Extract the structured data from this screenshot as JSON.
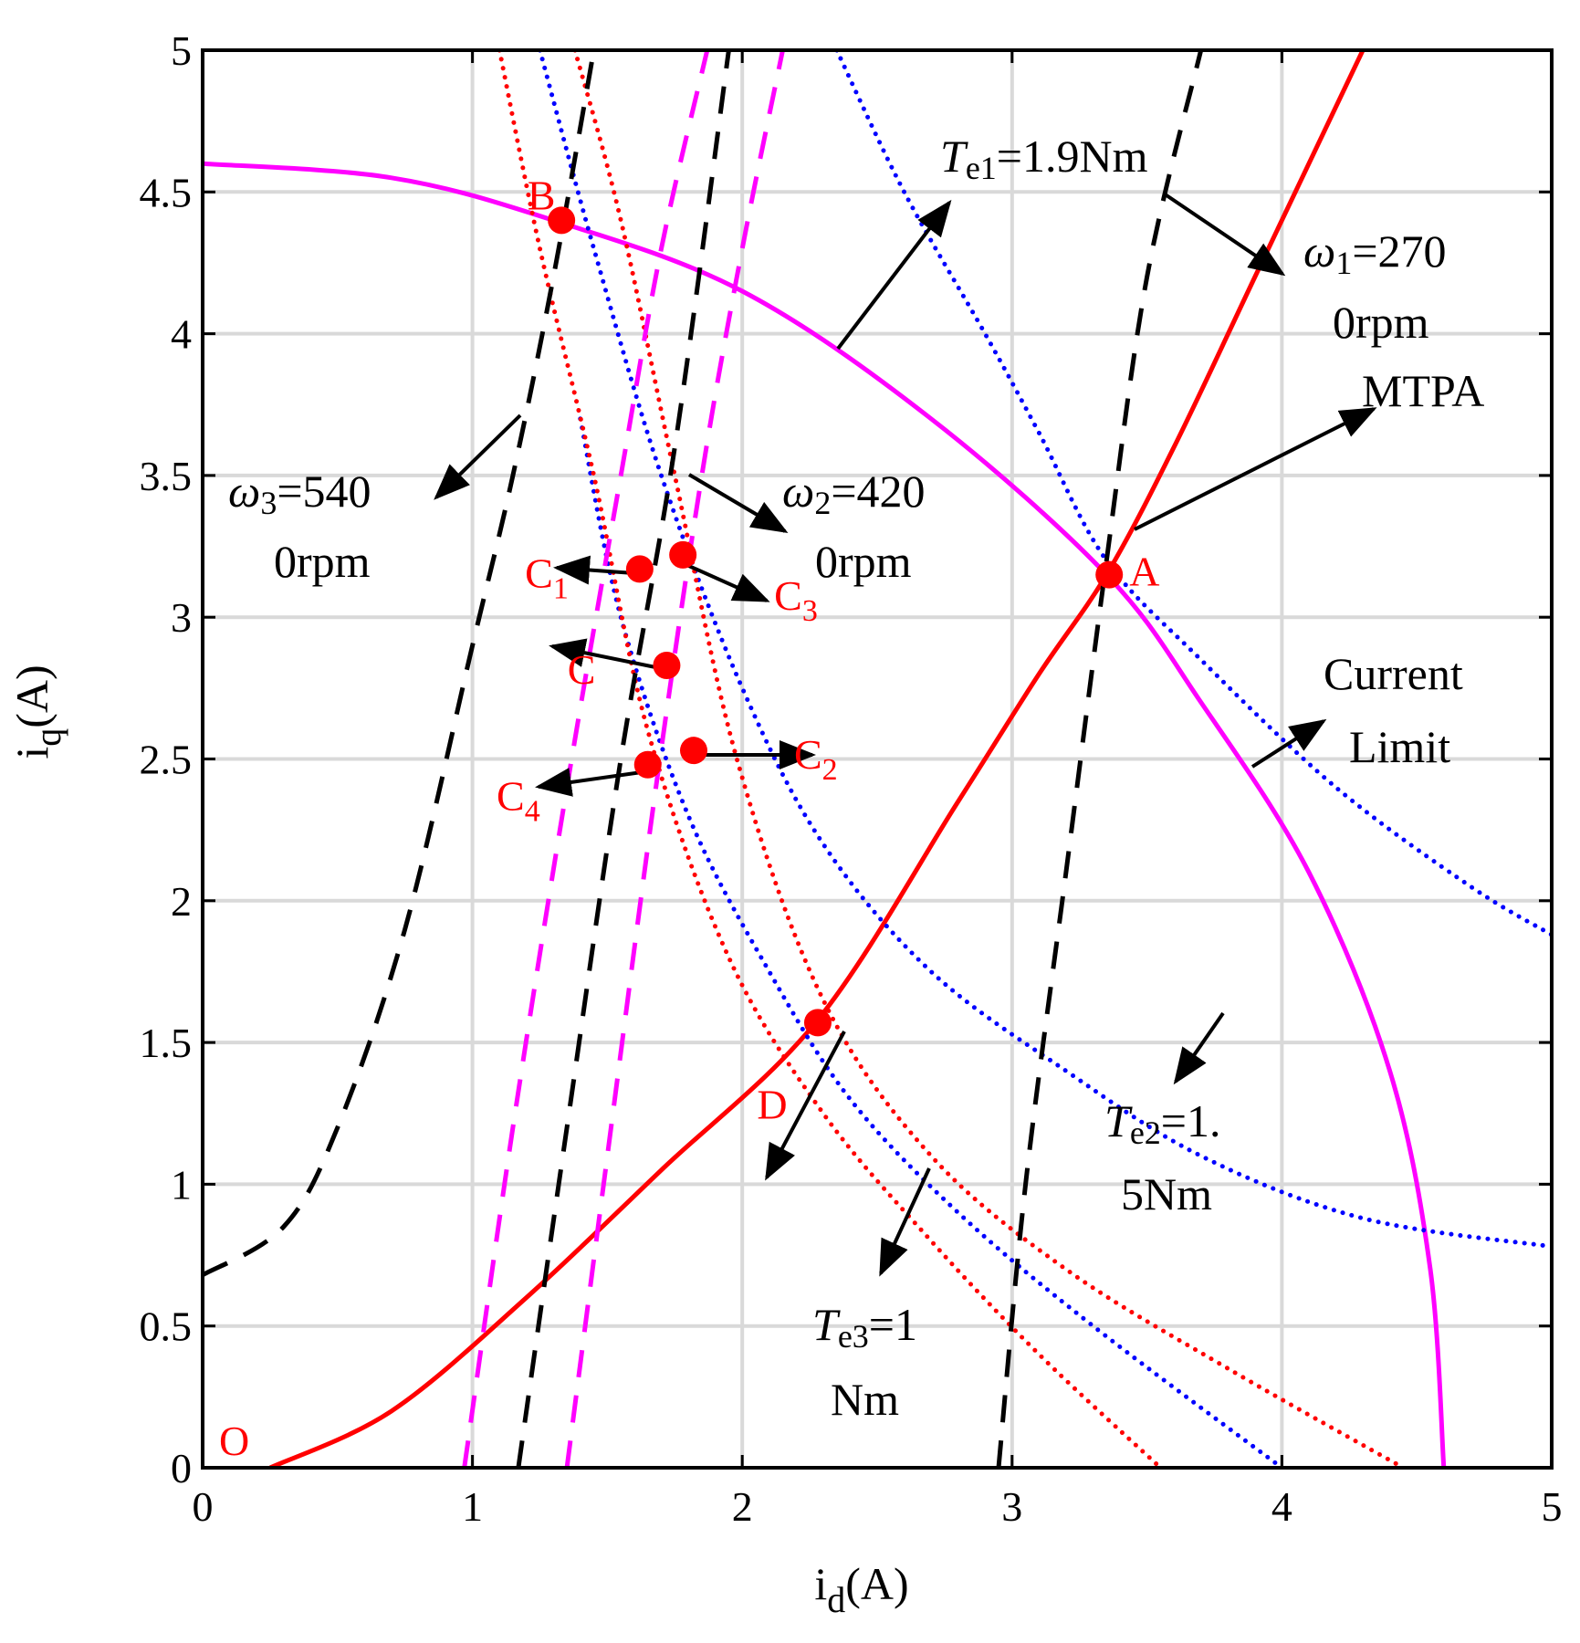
{
  "chart_data": {
    "type": "line",
    "title": "",
    "xlabel": {
      "main": "i",
      "sub": "d",
      "rest": "(A)"
    },
    "ylabel": {
      "main": "i",
      "sub": "q",
      "rest": "(A)"
    },
    "xlim": [
      0,
      5
    ],
    "ylim": [
      0,
      5
    ],
    "grid": true,
    "xticks": [
      "0",
      "1",
      "2",
      "3",
      "4",
      "5"
    ],
    "yticks": [
      "0",
      "0.5",
      "1",
      "1.5",
      "2",
      "2.5",
      "3",
      "3.5",
      "4",
      "4.5",
      "5"
    ],
    "colors": {
      "current_limit": "#ff00ff",
      "mtpa": "#ff0000",
      "torque_blue": "#0000ff",
      "torque_red": "#ff0000",
      "speed_black": "#000000",
      "speed_magenta": "#ff00ff",
      "points": "#ff0000",
      "grid": "#d9d9d9"
    },
    "series": [
      {
        "name": "Current Limit",
        "style": "solid",
        "color": "#ff00ff",
        "x": [
          0,
          0.7,
          1.3,
          2.0,
          2.7,
          3.35,
          3.7,
          4.1,
          4.4,
          4.55,
          4.6
        ],
        "y": [
          4.6,
          4.55,
          4.4,
          4.15,
          3.7,
          3.15,
          2.7,
          2.1,
          1.4,
          0.7,
          0
        ]
      },
      {
        "name": "MTPA",
        "style": "solid",
        "color": "#ff0000",
        "x": [
          0.25,
          0.7,
          1.2,
          1.7,
          2.28,
          2.8,
          3.1,
          3.35,
          3.6,
          3.9,
          4.3
        ],
        "y": [
          0,
          0.2,
          0.6,
          1.05,
          1.58,
          2.35,
          2.8,
          3.15,
          3.6,
          4.2,
          5.0
        ]
      },
      {
        "name": "Te1=1.9Nm",
        "style": "dotted",
        "color": "#0000ff",
        "x": [
          2.35,
          2.6,
          2.9,
          3.1,
          3.35,
          3.7,
          4.2,
          4.7,
          5.0
        ],
        "y": [
          5.0,
          4.5,
          4.0,
          3.65,
          3.2,
          2.85,
          2.4,
          2.05,
          1.88
        ]
      },
      {
        "name": "Te2=1.5Nm",
        "style": "dotted",
        "color": "#0000ff",
        "x": [
          1.25,
          1.45,
          1.7,
          2.0,
          2.3,
          2.7,
          3.2,
          3.7,
          4.3,
          5.0
        ],
        "y": [
          5.0,
          4.3,
          3.5,
          2.75,
          2.2,
          1.75,
          1.4,
          1.1,
          0.88,
          0.78
        ]
      },
      {
        "name": "Te3=1Nm",
        "style": "dotted",
        "color": "#0000ff",
        "x": [
          1.4,
          1.55,
          1.8,
          2.1,
          2.4,
          2.8,
          3.3,
          4.0
        ],
        "y": [
          3.7,
          3.0,
          2.3,
          1.75,
          1.3,
          0.9,
          0.5,
          0
        ]
      },
      {
        "name": "C3-torque",
        "style": "dotted",
        "color": "#ff0000",
        "x": [
          1.38,
          1.55,
          1.75,
          1.98,
          2.3,
          2.7,
          3.2,
          3.8,
          4.45
        ],
        "y": [
          5.0,
          4.4,
          3.5,
          2.5,
          1.65,
          1.1,
          0.7,
          0.35,
          0
        ]
      },
      {
        "name": "C4-torque",
        "style": "dotted",
        "color": "#ff0000",
        "x": [
          1.1,
          1.25,
          1.45,
          1.65,
          1.95,
          2.3,
          2.7,
          3.1,
          3.55
        ],
        "y": [
          5.0,
          4.3,
          3.5,
          2.6,
          1.8,
          1.25,
          0.8,
          0.4,
          0
        ]
      },
      {
        "name": "w3=5400rpm",
        "style": "dashed",
        "color": "#000000",
        "x": [
          0,
          0.3,
          0.5,
          0.75,
          1.0,
          1.15,
          1.3,
          1.45
        ],
        "y": [
          0.68,
          0.85,
          1.2,
          1.9,
          2.9,
          3.5,
          4.2,
          5.0
        ]
      },
      {
        "name": "w2=4200rpm",
        "style": "dashed",
        "color": "#000000",
        "x": [
          1.17,
          1.35,
          1.55,
          1.75,
          1.95
        ],
        "y": [
          0,
          1.2,
          2.5,
          3.6,
          5.0
        ]
      },
      {
        "name": "w1=2700rpm",
        "style": "dashed",
        "color": "#000000",
        "x": [
          2.95,
          3.05,
          3.2,
          3.35,
          3.5,
          3.7
        ],
        "y": [
          0,
          1.0,
          2.1,
          3.2,
          4.2,
          5.0
        ]
      },
      {
        "name": "speed-magenta-1",
        "style": "dashed",
        "color": "#ff00ff",
        "x": [
          0.97,
          1.15,
          1.35,
          1.55,
          1.7,
          1.87
        ],
        "y": [
          0,
          1.2,
          2.4,
          3.5,
          4.3,
          5.0
        ]
      },
      {
        "name": "speed-magenta-2",
        "style": "dashed",
        "color": "#ff00ff",
        "x": [
          1.35,
          1.5,
          1.68,
          1.85,
          2.0,
          2.15
        ],
        "y": [
          0,
          1.1,
          2.4,
          3.5,
          4.3,
          5.0
        ]
      }
    ],
    "points": [
      {
        "label": "A",
        "x": 3.36,
        "y": 3.15
      },
      {
        "label": "B",
        "x": 1.33,
        "y": 4.4
      },
      {
        "label": "C",
        "x": 1.72,
        "y": 2.83
      },
      {
        "label": "C1",
        "x": 1.62,
        "y": 3.17
      },
      {
        "label": "C2",
        "x": 1.82,
        "y": 2.53
      },
      {
        "label": "C3",
        "x": 1.78,
        "y": 3.22
      },
      {
        "label": "C4",
        "x": 1.65,
        "y": 2.48
      },
      {
        "label": "D",
        "x": 2.28,
        "y": 1.57
      }
    ],
    "origin_label": "O",
    "annotations": [
      {
        "name": "te1",
        "sym": "T",
        "sub": "e1",
        "rest": "=1.9Nm"
      },
      {
        "name": "w1",
        "sym": "ω",
        "sub": "1",
        "rest": "=270",
        "line2": "0rpm"
      },
      {
        "name": "mtpa",
        "text": "MTPA"
      },
      {
        "name": "w3",
        "sym": "ω",
        "sub": "3",
        "rest": "=540",
        "line2": "0rpm"
      },
      {
        "name": "w2",
        "sym": "ω",
        "sub": "2",
        "rest": "=420",
        "line2": "0rpm"
      },
      {
        "name": "current-limit",
        "text": "Current",
        "line2": "Limit"
      },
      {
        "name": "te2",
        "sym": "T",
        "sub": "e2",
        "rest": "=1.",
        "line2": "5Nm"
      },
      {
        "name": "te3",
        "sym": "T",
        "sub": "e3",
        "rest": "=1",
        "line2": "Nm"
      }
    ]
  }
}
